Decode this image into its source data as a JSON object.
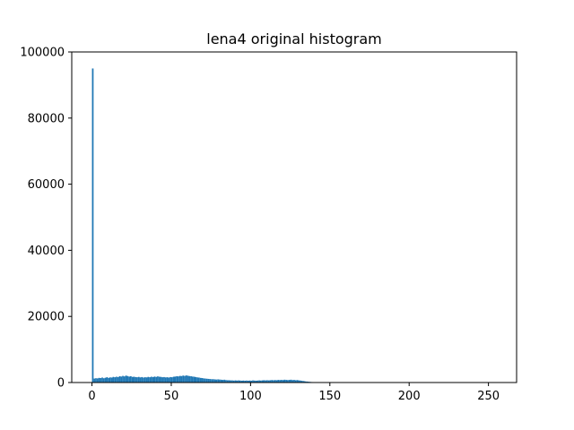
{
  "chart_data": {
    "type": "bar",
    "title": "lena4 original histogram",
    "xlabel": "",
    "ylabel": "",
    "xlim": [
      -12.75,
      267.75
    ],
    "ylim": [
      0,
      100000
    ],
    "x_ticks": [
      0,
      50,
      100,
      150,
      200,
      250
    ],
    "y_ticks": [
      0,
      20000,
      40000,
      60000,
      80000,
      100000
    ],
    "x_tick_labels": [
      "0",
      "50",
      "100",
      "150",
      "200",
      "250"
    ],
    "y_tick_labels": [
      "0",
      "20000",
      "40000",
      "60000",
      "80000",
      "100000"
    ],
    "grid": false,
    "bar_color": "#1f77b4",
    "bin_width": 1,
    "bins": [
      [
        0,
        95000
      ],
      [
        1,
        1200
      ],
      [
        2,
        1300
      ],
      [
        3,
        1250
      ],
      [
        4,
        1400
      ],
      [
        5,
        1350
      ],
      [
        6,
        1500
      ],
      [
        7,
        1300
      ],
      [
        8,
        1450
      ],
      [
        9,
        1600
      ],
      [
        10,
        1400
      ],
      [
        11,
        1550
      ],
      [
        12,
        1500
      ],
      [
        13,
        1700
      ],
      [
        14,
        1600
      ],
      [
        15,
        1750
      ],
      [
        16,
        1650
      ],
      [
        17,
        1900
      ],
      [
        18,
        1800
      ],
      [
        19,
        2000
      ],
      [
        20,
        1850
      ],
      [
        21,
        2100
      ],
      [
        22,
        1950
      ],
      [
        23,
        1800
      ],
      [
        24,
        1900
      ],
      [
        25,
        1700
      ],
      [
        26,
        1750
      ],
      [
        27,
        1650
      ],
      [
        28,
        1600
      ],
      [
        29,
        1700
      ],
      [
        30,
        1550
      ],
      [
        31,
        1650
      ],
      [
        32,
        1500
      ],
      [
        33,
        1600
      ],
      [
        34,
        1550
      ],
      [
        35,
        1700
      ],
      [
        36,
        1600
      ],
      [
        37,
        1750
      ],
      [
        38,
        1650
      ],
      [
        39,
        1800
      ],
      [
        40,
        1700
      ],
      [
        41,
        1850
      ],
      [
        42,
        1750
      ],
      [
        43,
        1700
      ],
      [
        44,
        1600
      ],
      [
        45,
        1650
      ],
      [
        46,
        1550
      ],
      [
        47,
        1600
      ],
      [
        48,
        1500
      ],
      [
        49,
        1650
      ],
      [
        50,
        1600
      ],
      [
        51,
        1750
      ],
      [
        52,
        1800
      ],
      [
        53,
        1900
      ],
      [
        54,
        1850
      ],
      [
        55,
        2000
      ],
      [
        56,
        1950
      ],
      [
        57,
        2100
      ],
      [
        58,
        2000
      ],
      [
        59,
        2150
      ],
      [
        60,
        2050
      ],
      [
        61,
        1950
      ],
      [
        62,
        1900
      ],
      [
        63,
        1800
      ],
      [
        64,
        1750
      ],
      [
        65,
        1650
      ],
      [
        66,
        1550
      ],
      [
        67,
        1500
      ],
      [
        68,
        1400
      ],
      [
        69,
        1350
      ],
      [
        70,
        1250
      ],
      [
        71,
        1200
      ],
      [
        72,
        1150
      ],
      [
        73,
        1100
      ],
      [
        74,
        1050
      ],
      [
        75,
        1000
      ],
      [
        76,
        1000
      ],
      [
        77,
        950
      ],
      [
        78,
        900
      ],
      [
        79,
        950
      ],
      [
        80,
        900
      ],
      [
        81,
        850
      ],
      [
        82,
        800
      ],
      [
        83,
        850
      ],
      [
        84,
        750
      ],
      [
        85,
        700
      ],
      [
        86,
        700
      ],
      [
        87,
        650
      ],
      [
        88,
        650
      ],
      [
        89,
        600
      ],
      [
        90,
        650
      ],
      [
        91,
        600
      ],
      [
        92,
        650
      ],
      [
        93,
        600
      ],
      [
        94,
        550
      ],
      [
        95,
        600
      ],
      [
        96,
        550
      ],
      [
        97,
        600
      ],
      [
        98,
        550
      ],
      [
        99,
        600
      ],
      [
        100,
        550
      ],
      [
        101,
        650
      ],
      [
        102,
        600
      ],
      [
        103,
        550
      ],
      [
        104,
        600
      ],
      [
        105,
        650
      ],
      [
        106,
        600
      ],
      [
        107,
        650
      ],
      [
        108,
        700
      ],
      [
        109,
        650
      ],
      [
        110,
        700
      ],
      [
        111,
        650
      ],
      [
        112,
        700
      ],
      [
        113,
        750
      ],
      [
        114,
        700
      ],
      [
        115,
        750
      ],
      [
        116,
        700
      ],
      [
        117,
        800
      ],
      [
        118,
        750
      ],
      [
        119,
        800
      ],
      [
        120,
        750
      ],
      [
        121,
        850
      ],
      [
        122,
        800
      ],
      [
        123,
        750
      ],
      [
        124,
        800
      ],
      [
        125,
        850
      ],
      [
        126,
        750
      ],
      [
        127,
        800
      ],
      [
        128,
        700
      ],
      [
        129,
        750
      ],
      [
        130,
        650
      ],
      [
        131,
        600
      ],
      [
        132,
        500
      ],
      [
        133,
        450
      ],
      [
        134,
        350
      ],
      [
        135,
        300
      ],
      [
        136,
        250
      ],
      [
        137,
        200
      ],
      [
        138,
        150
      ],
      [
        139,
        100
      ],
      [
        140,
        80
      ],
      [
        141,
        60
      ],
      [
        142,
        40
      ],
      [
        143,
        30
      ],
      [
        144,
        20
      ],
      [
        145,
        15
      ],
      [
        146,
        10
      ],
      [
        147,
        8
      ],
      [
        148,
        5
      ],
      [
        149,
        3
      ],
      [
        150,
        2
      ]
    ]
  }
}
